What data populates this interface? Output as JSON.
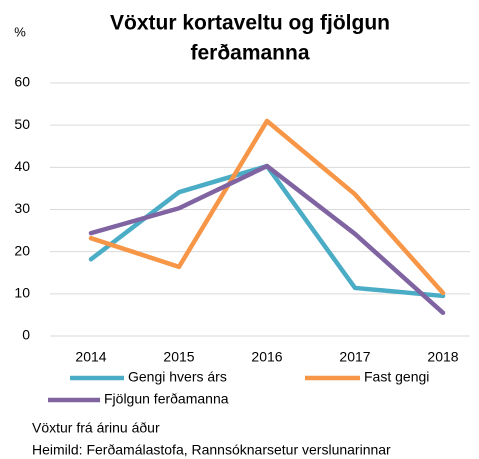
{
  "chart_data": {
    "type": "line",
    "title": [
      "Vöxtur kortaveltu og fjölgun",
      "ferðamanna"
    ],
    "y_label": "%",
    "categories": [
      "2014",
      "2015",
      "2016",
      "2017",
      "2018"
    ],
    "series": [
      {
        "name": "Gengi hvers árs",
        "color": "#4bacc6",
        "values": [
          18.2,
          34.1,
          40.3,
          11.4,
          9.5
        ]
      },
      {
        "name": "Fast gengi",
        "color": "#f79646",
        "values": [
          23.2,
          16.4,
          51,
          33.6,
          10.2
        ]
      },
      {
        "name": "Fjölgun ferðamanna",
        "color": "#8064a2",
        "values": [
          24.4,
          30.3,
          40.3,
          24.2,
          5.5
        ]
      }
    ],
    "ylim": [
      0,
      60
    ],
    "yticks": [
      0,
      10,
      20,
      30,
      40,
      50,
      60
    ],
    "grid": true,
    "notes": [
      "Vöxtur frá árinu áður",
      "Heimild: Ferðamálastofa, Rannsóknarsetur verslunarinnar"
    ]
  }
}
